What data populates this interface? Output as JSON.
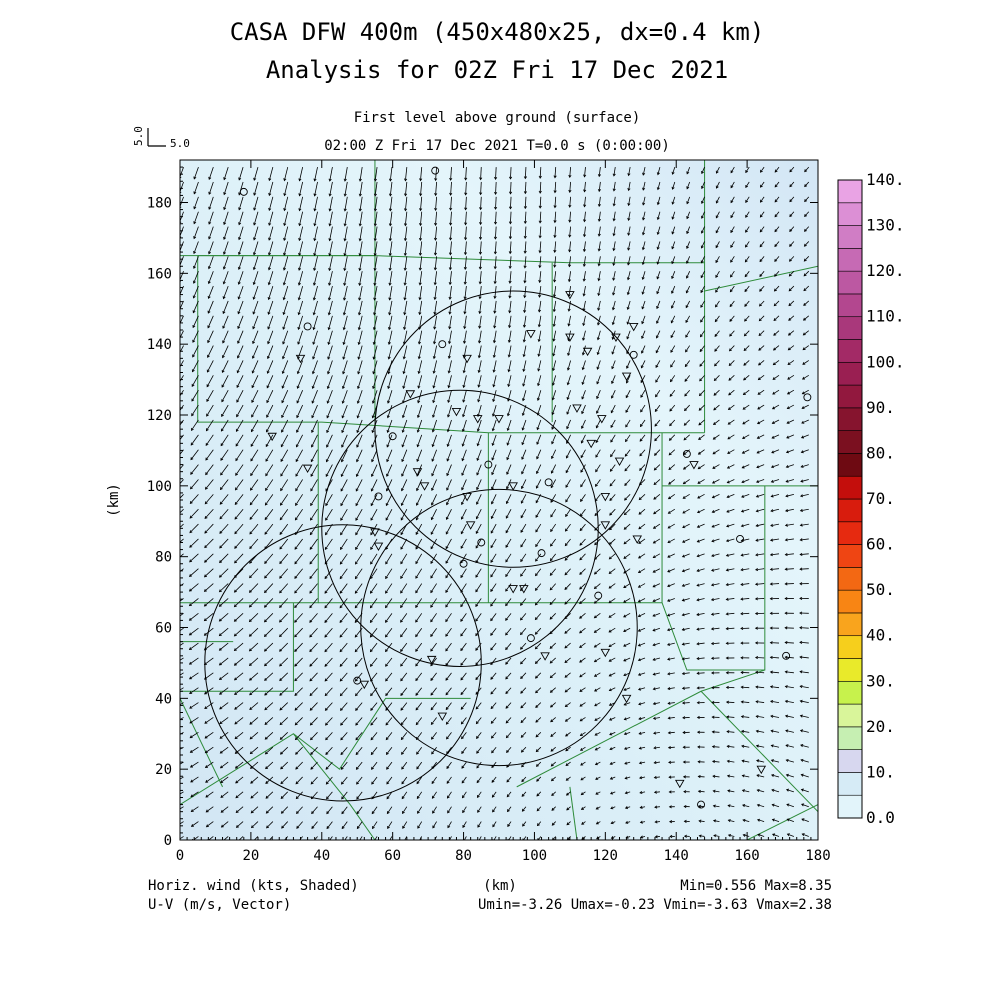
{
  "title_line1": "CASA DFW 400m (450x480x25, dx=0.4 km)",
  "title_line2": "Analysis for 02Z Fri 17 Dec 2021",
  "subtitle_level": "First level above ground (surface)",
  "subtitle_time": "02:00 Z Fri 17 Dec 2021    T=0.0 s (0:00:00)",
  "ref_vector": {
    "label_x": "5.0",
    "label_y": "5.0"
  },
  "bottom_left": [
    "Horiz. wind (kts, Shaded)",
    "U-V (m/s, Vector)"
  ],
  "bottom_right_1": "Min=0.556 Max=8.35",
  "bottom_right_2": "Umin=-3.26 Umax=-0.23 Vmin=-3.63 Vmax=2.38",
  "colors": {
    "shade_low": "#dff1f8",
    "shade_mid": "#cfe3f2",
    "county_lines": "#2e8b3a",
    "radar_rings": "#000000"
  },
  "chart_data": {
    "type": "heatmap",
    "description_fields": {
      "shaded": "Horizontal wind speed (kts)",
      "vectors": "U-V wind (m/s)"
    },
    "xlabel": "(km)",
    "ylabel": "(km)",
    "xlim": [
      0,
      180
    ],
    "ylim": [
      0,
      192
    ],
    "x_ticks": [
      0,
      20,
      40,
      60,
      80,
      100,
      120,
      140,
      160,
      180
    ],
    "y_ticks": [
      0,
      20,
      40,
      60,
      80,
      100,
      120,
      140,
      160,
      180
    ],
    "x_tick_labels": [
      "0",
      "20",
      "40",
      "60",
      "80",
      "100",
      "120",
      "140",
      "160",
      "180"
    ],
    "y_tick_labels": [
      "0",
      "20",
      "40",
      "60",
      "80",
      "100",
      "120",
      "140",
      "160",
      "180"
    ],
    "colorbar": {
      "levels": [
        0,
        5,
        10,
        15,
        20,
        25,
        30,
        35,
        40,
        45,
        50,
        55,
        60,
        65,
        70,
        75,
        80,
        85,
        90,
        95,
        100,
        105,
        110,
        115,
        120,
        125,
        130,
        135,
        140
      ],
      "tick_labels": [
        "0.0",
        "10.",
        "20.",
        "30.",
        "40.",
        "50.",
        "60.",
        "70.",
        "80.",
        "90.",
        "100.",
        "110.",
        "120.",
        "130.",
        "140."
      ],
      "tick_values": [
        0,
        10,
        20,
        30,
        40,
        50,
        60,
        70,
        80,
        90,
        100,
        110,
        120,
        130,
        140
      ],
      "colors": [
        "#e2f4fa",
        "#d6ebf6",
        "#d7d7ef",
        "#c6efb2",
        "#d9f59a",
        "#c7f24c",
        "#e9ea2a",
        "#f6cf1c",
        "#f9a41d",
        "#f88514",
        "#f36813",
        "#ef4513",
        "#e62a10",
        "#d81c0d",
        "#c40e0c",
        "#6e0a12",
        "#7b1020",
        "#86142e",
        "#92183e",
        "#9a1f52",
        "#a32a66",
        "#a9387b",
        "#b3478f",
        "#bc58a2",
        "#c66ab4",
        "#d07dc5",
        "#dc8fd5",
        "#e9a3e4",
        "#f7b8f2"
      ]
    },
    "radar_circles": [
      {
        "cx": 94,
        "cy": 116,
        "r": 39
      },
      {
        "cx": 79,
        "cy": 88,
        "r": 39
      },
      {
        "cx": 90,
        "cy": 60,
        "r": 39
      },
      {
        "cx": 46,
        "cy": 50,
        "r": 39
      }
    ],
    "stats": {
      "min": 0.556,
      "max": 8.35,
      "umin": -3.26,
      "umax": -0.23,
      "vmin": -3.63,
      "vmax": 2.38
    },
    "grid": false
  }
}
